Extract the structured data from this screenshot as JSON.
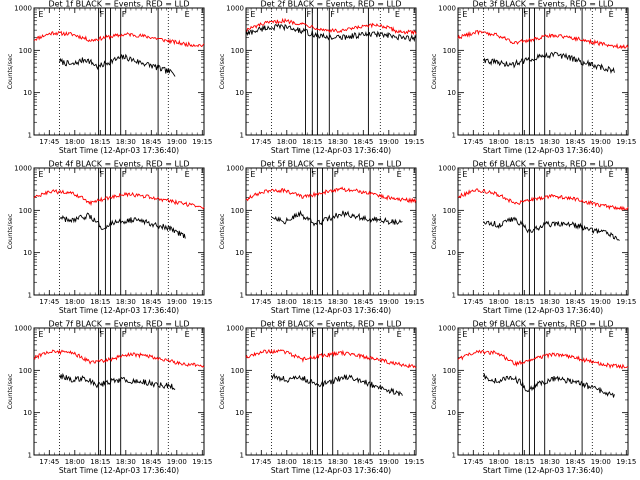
{
  "chart_data": {
    "type": "line",
    "title_template": "Det {det} BLACK = Events, RED = LLD",
    "ylabel": "Counts/sec",
    "xlabel": "Start Time (12-Apr-03 17:36:40)",
    "y_scale": "log",
    "ylim": [
      1,
      1000
    ],
    "y_tick_labels": [
      "1",
      "10",
      "100",
      "1000"
    ],
    "xlim_minutes": [
      0,
      100
    ],
    "x_tick_minutes": [
      9,
      24,
      39,
      54,
      69,
      84,
      99
    ],
    "x_tick_labels": [
      "17:45",
      "18:00",
      "18:15",
      "18:30",
      "18:45",
      "19:00",
      "19:15"
    ],
    "series_names": [
      "Events",
      "LLD"
    ],
    "series_colors": {
      "Events": "#000000",
      "LLD": "#ff0000"
    },
    "flag_labels": [
      "E",
      "F",
      "F",
      "E"
    ],
    "dotted_minutes": [
      15,
      79
    ],
    "panels": [
      {
        "det": "1f",
        "events_start": 15,
        "events_end": 83,
        "lld_start": 0,
        "lld_end": 100,
        "events_level": [
          55,
          45,
          62,
          40,
          55,
          70,
          55,
          45,
          35,
          28
        ],
        "lld_level": [
          180,
          260,
          240,
          170,
          210,
          240,
          210,
          170,
          140,
          130
        ],
        "solid_minutes": [
          38,
          42,
          45,
          51,
          73
        ],
        "flag_minutes": [
          2,
          38,
          51,
          88
        ]
      },
      {
        "det": "2f",
        "events_start": 0,
        "events_end": 100,
        "lld_start": 0,
        "lld_end": 100,
        "events_level": [
          240,
          340,
          360,
          280,
          210,
          200,
          230,
          240,
          200,
          190
        ],
        "lld_level": [
          300,
          430,
          500,
          420,
          310,
          280,
          350,
          400,
          280,
          260
        ],
        "solid_minutes": [
          35,
          39,
          42,
          49,
          72
        ],
        "flag_minutes": [
          2,
          35,
          49,
          87
        ]
      },
      {
        "det": "3f",
        "events_start": 15,
        "events_end": 92,
        "lld_start": 0,
        "lld_end": 100,
        "events_level": [
          60,
          50,
          45,
          60,
          75,
          80,
          65,
          50,
          40,
          32
        ],
        "lld_level": [
          200,
          270,
          230,
          150,
          180,
          230,
          200,
          160,
          130,
          120
        ],
        "solid_minutes": [
          38,
          42,
          45,
          51,
          73
        ],
        "flag_minutes": [
          2,
          38,
          51,
          88
        ]
      },
      {
        "det": "4f",
        "events_start": 15,
        "events_end": 89,
        "lld_start": 0,
        "lld_end": 100,
        "events_level": [
          65,
          55,
          75,
          40,
          50,
          60,
          55,
          45,
          35,
          25
        ],
        "lld_level": [
          200,
          280,
          250,
          150,
          200,
          240,
          210,
          170,
          140,
          120
        ],
        "solid_minutes": [
          38,
          42,
          45,
          51,
          73
        ],
        "flag_minutes": [
          2,
          38,
          51,
          88
        ]
      },
      {
        "det": "5f",
        "events_start": 15,
        "events_end": 92,
        "lld_start": 0,
        "lld_end": 100,
        "events_level": [
          70,
          55,
          80,
          45,
          65,
          85,
          70,
          60,
          55,
          50
        ],
        "lld_level": [
          180,
          280,
          300,
          200,
          260,
          320,
          280,
          220,
          180,
          170
        ],
        "solid_minutes": [
          38,
          42,
          45,
          51,
          73
        ],
        "flag_minutes": [
          2,
          38,
          51,
          88
        ]
      },
      {
        "det": "6f",
        "events_start": 15,
        "events_end": 95,
        "lld_start": 0,
        "lld_end": 100,
        "events_level": [
          55,
          45,
          65,
          30,
          45,
          50,
          45,
          35,
          30,
          22
        ],
        "lld_level": [
          210,
          300,
          250,
          140,
          180,
          220,
          190,
          150,
          120,
          110
        ],
        "solid_minutes": [
          38,
          42,
          45,
          51,
          73
        ],
        "flag_minutes": [
          2,
          38,
          51,
          88
        ]
      },
      {
        "det": "7f",
        "events_start": 15,
        "events_end": 83,
        "lld_start": 0,
        "lld_end": 100,
        "events_level": [
          75,
          60,
          65,
          45,
          55,
          60,
          55,
          50,
          45,
          40
        ],
        "lld_level": [
          200,
          280,
          260,
          150,
          180,
          240,
          220,
          170,
          140,
          130
        ],
        "solid_minutes": [
          38,
          42,
          45,
          51,
          73
        ],
        "flag_minutes": [
          2,
          38,
          51,
          88
        ]
      },
      {
        "det": "8f",
        "events_start": 15,
        "events_end": 92,
        "lld_start": 0,
        "lld_end": 100,
        "events_level": [
          75,
          60,
          70,
          45,
          50,
          70,
          60,
          45,
          35,
          25
        ],
        "lld_level": [
          200,
          280,
          280,
          180,
          220,
          260,
          220,
          180,
          140,
          120
        ],
        "solid_minutes": [
          38,
          42,
          45,
          51,
          73
        ],
        "flag_minutes": [
          2,
          38,
          51,
          88
        ]
      },
      {
        "det": "9f",
        "events_start": 15,
        "events_end": 92,
        "lld_start": 0,
        "lld_end": 100,
        "events_level": [
          70,
          55,
          70,
          35,
          50,
          65,
          55,
          45,
          32,
          25
        ],
        "lld_level": [
          180,
          270,
          260,
          140,
          180,
          240,
          210,
          160,
          130,
          120
        ],
        "solid_minutes": [
          38,
          42,
          45,
          51,
          73
        ],
        "flag_minutes": [
          2,
          38,
          51,
          88
        ]
      }
    ]
  }
}
